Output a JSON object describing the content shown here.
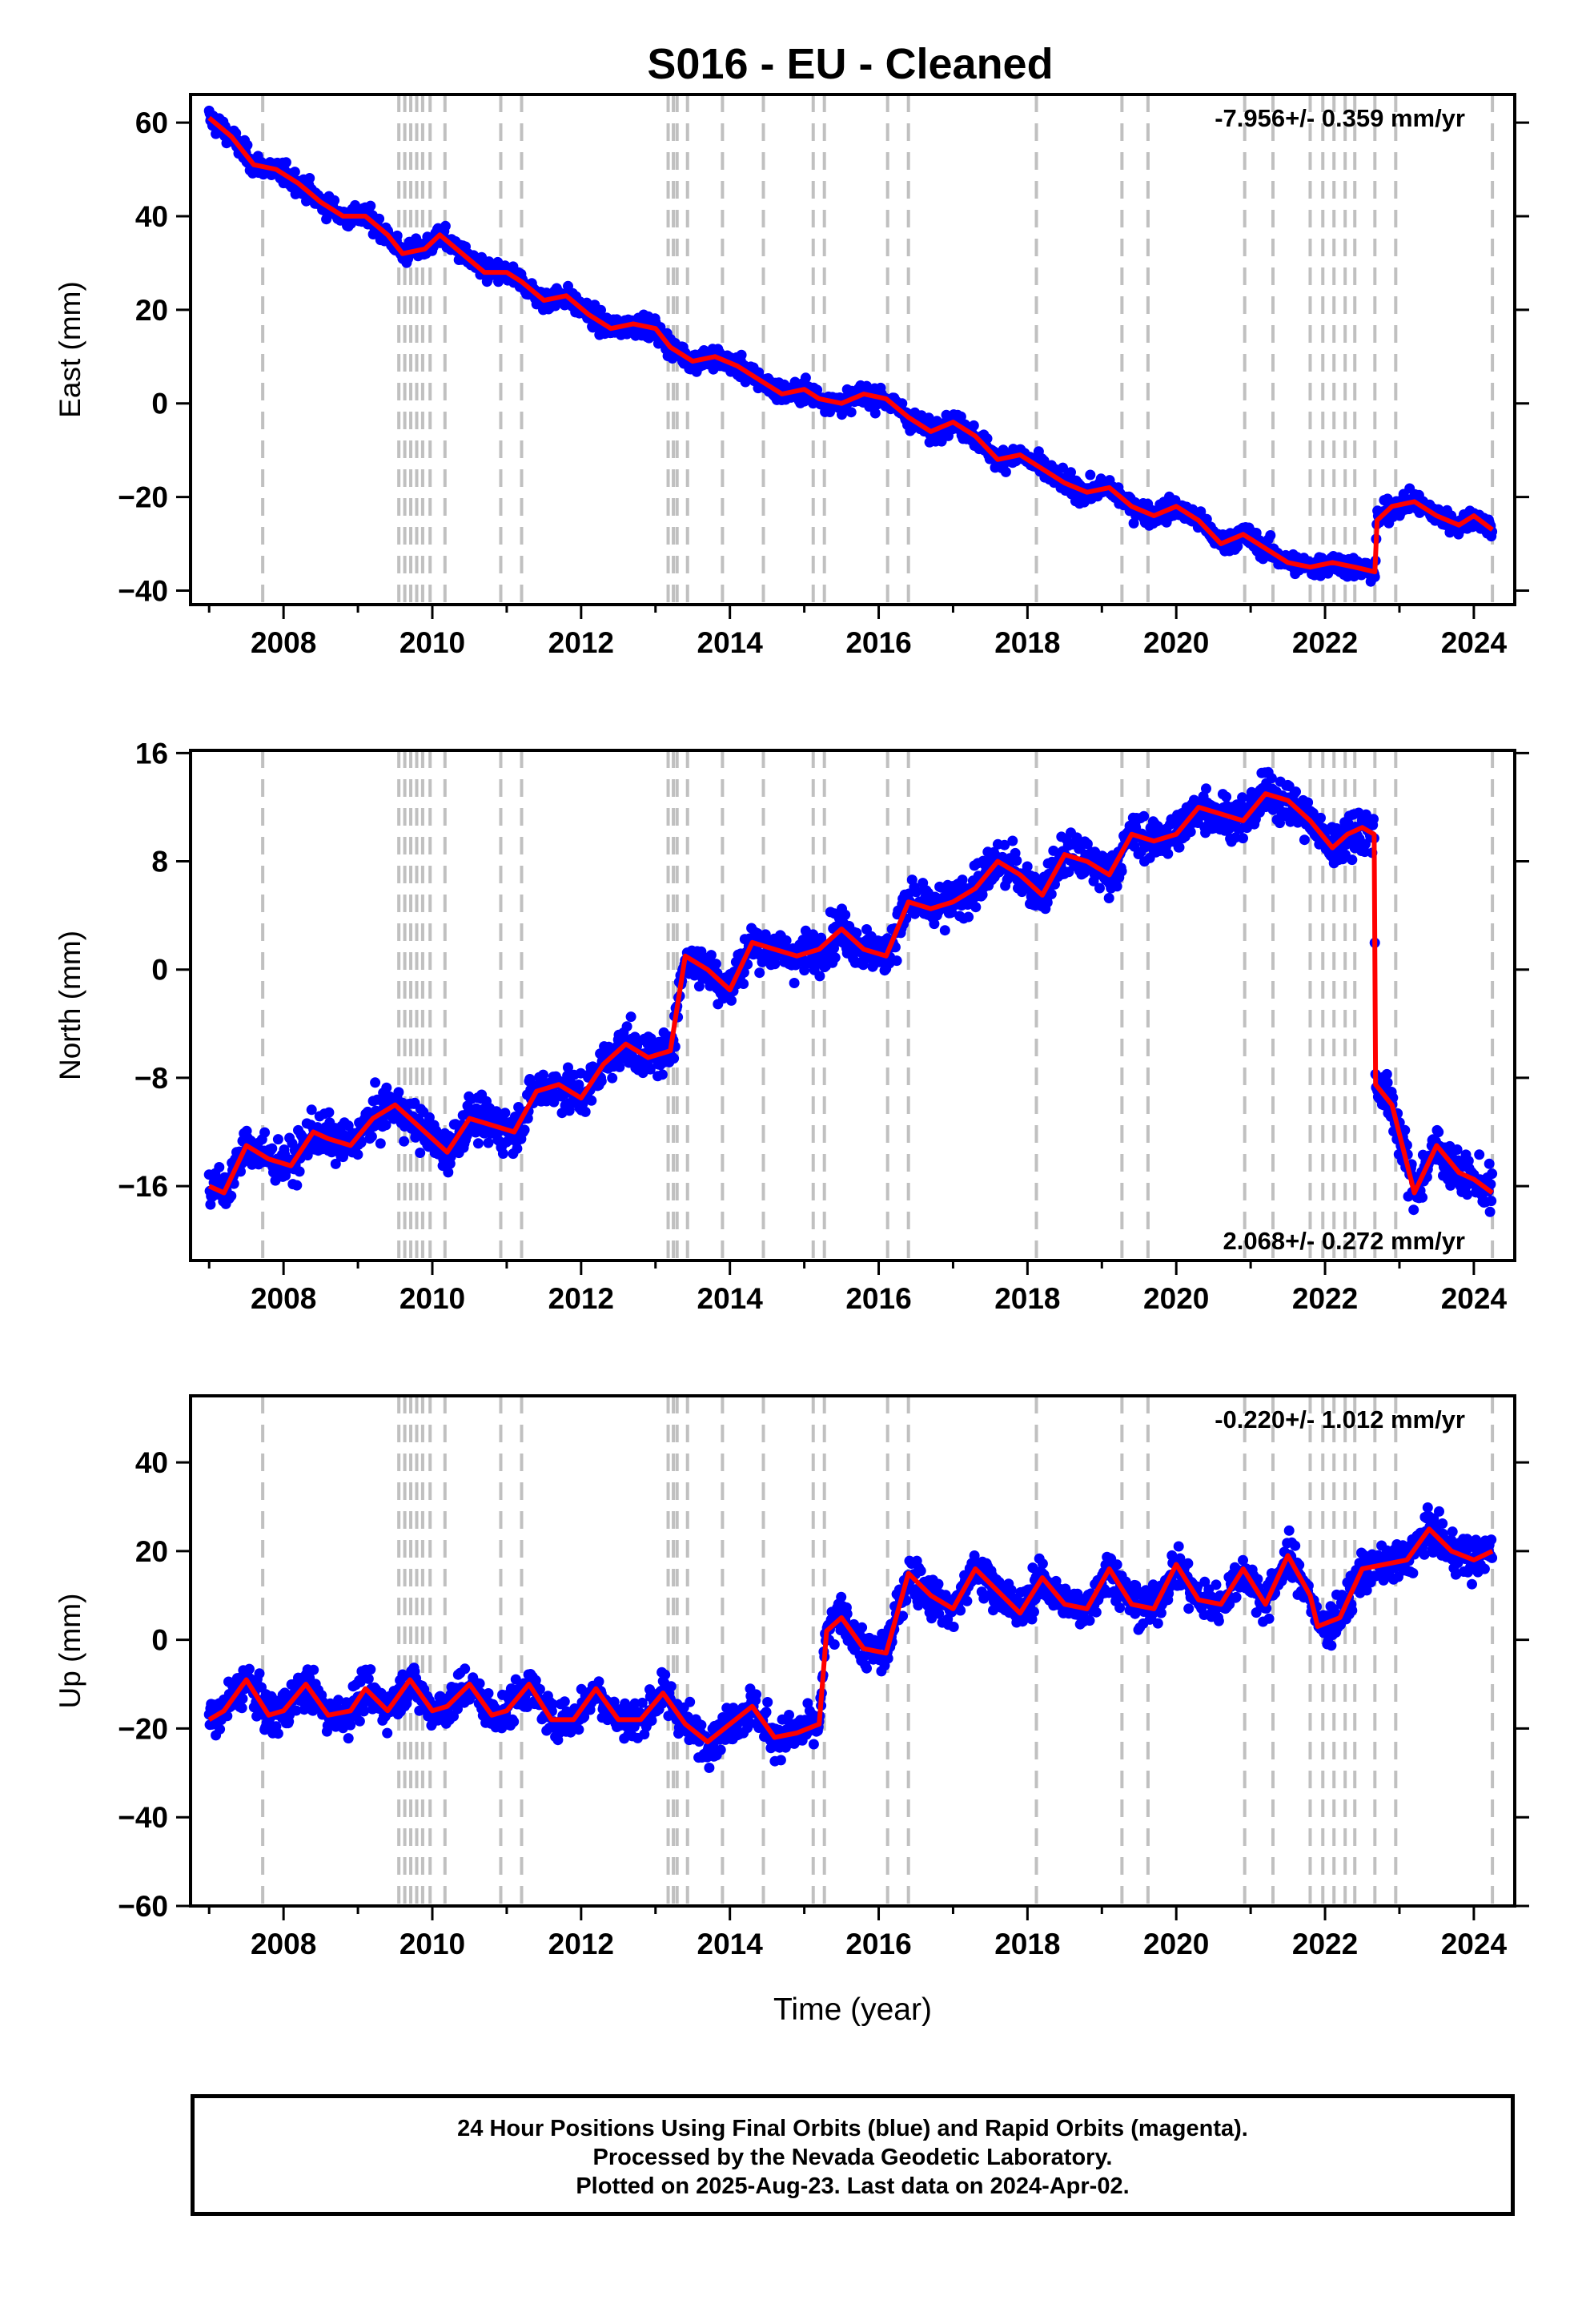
{
  "chart_data": [
    {
      "type": "scatter",
      "title": "S016  - EU - Cleaned",
      "ylabel": "East (mm)",
      "rate_label": "-7.956+/- 0.359 mm/yr",
      "rate_position": "top-right",
      "xlim": [
        2006.75,
        2024.55
      ],
      "ylim": [
        -43,
        66
      ],
      "xticks": [
        "2008",
        "2010",
        "2012",
        "2014",
        "2016",
        "2018",
        "2020",
        "2022",
        "2024"
      ],
      "yticks": [
        "60",
        "40",
        "20",
        "0",
        "−20",
        "−40"
      ],
      "ytick_values": [
        60,
        40,
        20,
        0,
        -20,
        -40
      ],
      "colors": {
        "points": "#0000ff",
        "model": "#ff0000",
        "events": "#c0c0c0"
      },
      "model": {
        "type": "line",
        "x": [
          2007.0,
          2007.3,
          2007.6,
          2007.9,
          2008.2,
          2008.5,
          2008.8,
          2009.1,
          2009.4,
          2009.6,
          2009.9,
          2010.1,
          2010.4,
          2010.7,
          2011.0,
          2011.2,
          2011.5,
          2011.8,
          2012.1,
          2012.4,
          2012.7,
          2013.0,
          2013.2,
          2013.5,
          2013.8,
          2014.1,
          2014.4,
          2014.7,
          2015.0,
          2015.2,
          2015.5,
          2015.8,
          2016.1,
          2016.4,
          2016.7,
          2017.0,
          2017.3,
          2017.6,
          2017.9,
          2018.2,
          2018.5,
          2018.8,
          2019.1,
          2019.4,
          2019.7,
          2020.0,
          2020.3,
          2020.6,
          2020.9,
          2021.2,
          2021.5,
          2021.8,
          2022.1,
          2022.4,
          2022.67,
          2022.7,
          2022.9,
          2023.2,
          2023.5,
          2023.8,
          2024.0,
          2024.25
        ],
        "y": [
          61,
          57,
          51,
          50,
          47,
          43,
          40,
          40,
          36,
          32,
          33,
          36,
          32,
          28,
          28,
          26,
          22,
          23,
          19,
          16,
          17,
          16,
          12,
          9,
          10,
          8,
          5,
          2,
          3,
          1,
          0,
          2,
          1,
          -3,
          -6,
          -4,
          -7,
          -12,
          -11,
          -14,
          -17,
          -19,
          -18,
          -22,
          -24,
          -22,
          -25,
          -30,
          -28,
          -31,
          -34,
          -35,
          -34,
          -35,
          -36,
          -25,
          -22,
          -21,
          -24,
          -26,
          -24,
          -27
        ]
      },
      "events": [
        2007.72,
        2009.55,
        2009.63,
        2009.71,
        2009.79,
        2009.87,
        2009.97,
        2010.17,
        2010.92,
        2011.2,
        2013.17,
        2013.24,
        2013.29,
        2013.43,
        2013.9,
        2014.45,
        2015.12,
        2015.27,
        2016.12,
        2016.4,
        2018.12,
        2019.27,
        2019.62,
        2020.92,
        2021.3,
        2021.8,
        2021.97,
        2022.12,
        2022.27,
        2022.4,
        2022.67,
        2022.95,
        2024.25
      ]
    },
    {
      "type": "scatter",
      "ylabel": "North (mm)",
      "rate_label": "2.068+/- 0.272 mm/yr",
      "rate_position": "bottom-right",
      "xlim": [
        2006.75,
        2024.55
      ],
      "ylim": [
        -21.5,
        16.2
      ],
      "xticks": [
        "2008",
        "2010",
        "2012",
        "2014",
        "2016",
        "2018",
        "2020",
        "2022",
        "2024"
      ],
      "yticks": [
        "16",
        "8",
        "0",
        "−8",
        "−16"
      ],
      "ytick_values": [
        16,
        8,
        0,
        -8,
        -16
      ],
      "colors": {
        "points": "#0000ff",
        "model": "#ff0000",
        "events": "#c0c0c0"
      },
      "model": {
        "type": "line",
        "x": [
          2007.0,
          2007.2,
          2007.5,
          2007.8,
          2008.1,
          2008.4,
          2008.6,
          2008.9,
          2009.2,
          2009.5,
          2009.7,
          2010.0,
          2010.2,
          2010.5,
          2010.8,
          2011.1,
          2011.4,
          2011.7,
          2012.0,
          2012.3,
          2012.6,
          2012.9,
          2013.2,
          2013.4,
          2013.7,
          2014.0,
          2014.3,
          2014.6,
          2014.9,
          2015.2,
          2015.5,
          2015.8,
          2016.1,
          2016.4,
          2016.7,
          2017.0,
          2017.3,
          2017.6,
          2017.9,
          2018.2,
          2018.5,
          2018.8,
          2019.1,
          2019.4,
          2019.7,
          2020.0,
          2020.3,
          2020.6,
          2020.9,
          2021.2,
          2021.5,
          2021.8,
          2022.1,
          2022.3,
          2022.5,
          2022.66,
          2022.68,
          2022.9,
          2023.2,
          2023.5,
          2023.8,
          2024.0,
          2024.25
        ],
        "y": [
          -16,
          -16.5,
          -13,
          -14,
          -14.5,
          -12,
          -12.5,
          -13,
          -11,
          -10,
          -11,
          -12.5,
          -13.5,
          -11,
          -11.5,
          -12,
          -9,
          -8.5,
          -9.5,
          -7,
          -5.5,
          -6.5,
          -6,
          1,
          0,
          -1.5,
          2,
          1.5,
          1,
          1.5,
          3,
          1.5,
          1,
          5,
          4.5,
          5,
          6,
          8,
          7,
          5.5,
          8.5,
          8,
          7,
          10,
          9.5,
          10,
          12,
          11.5,
          11,
          13,
          12.5,
          11,
          9,
          10,
          10.5,
          10,
          -8.5,
          -10,
          -16.5,
          -13,
          -15,
          -15.5,
          -16.5
        ]
      },
      "events": [
        2007.72,
        2009.55,
        2009.63,
        2009.71,
        2009.79,
        2009.87,
        2009.97,
        2010.17,
        2010.92,
        2011.2,
        2013.17,
        2013.24,
        2013.29,
        2013.43,
        2013.9,
        2014.45,
        2015.12,
        2015.27,
        2016.12,
        2016.4,
        2018.12,
        2019.27,
        2019.62,
        2020.92,
        2021.3,
        2021.8,
        2021.97,
        2022.12,
        2022.27,
        2022.4,
        2022.67,
        2022.95,
        2024.25
      ]
    },
    {
      "type": "scatter",
      "ylabel": "Up (mm)",
      "xlabel": "Time (year)",
      "rate_label": "-0.220+/- 1.012 mm/yr",
      "rate_position": "top-right",
      "xlim": [
        2006.75,
        2024.55
      ],
      "ylim": [
        -60,
        55
      ],
      "xticks": [
        "2008",
        "2010",
        "2012",
        "2014",
        "2016",
        "2018",
        "2020",
        "2022",
        "2024"
      ],
      "yticks": [
        "40",
        "20",
        "0",
        "−20",
        "−40",
        "−60"
      ],
      "ytick_values": [
        40,
        20,
        0,
        -20,
        -40,
        -60
      ],
      "colors": {
        "points": "#0000ff",
        "model": "#ff0000",
        "events": "#c0c0c0"
      },
      "model": {
        "type": "line",
        "x": [
          2007.0,
          2007.2,
          2007.5,
          2007.8,
          2008.0,
          2008.3,
          2008.6,
          2008.9,
          2009.1,
          2009.4,
          2009.7,
          2010.0,
          2010.2,
          2010.5,
          2010.8,
          2011.0,
          2011.3,
          2011.6,
          2011.9,
          2012.2,
          2012.5,
          2012.8,
          2013.1,
          2013.4,
          2013.7,
          2014.0,
          2014.3,
          2014.6,
          2014.9,
          2015.2,
          2015.3,
          2015.5,
          2015.8,
          2016.1,
          2016.4,
          2016.7,
          2017.0,
          2017.3,
          2017.6,
          2017.9,
          2018.2,
          2018.5,
          2018.8,
          2019.1,
          2019.4,
          2019.7,
          2020.0,
          2020.3,
          2020.6,
          2020.9,
          2021.2,
          2021.5,
          2021.8,
          2021.9,
          2022.2,
          2022.5,
          2022.8,
          2023.1,
          2023.4,
          2023.7,
          2024.0,
          2024.25
        ],
        "y": [
          -18,
          -16,
          -9,
          -17,
          -16,
          -10,
          -17,
          -16,
          -11,
          -16,
          -9,
          -16,
          -15,
          -10,
          -17,
          -16,
          -10,
          -18,
          -18,
          -11,
          -18,
          -18,
          -12,
          -19,
          -23,
          -19,
          -15,
          -22,
          -21,
          -19,
          2,
          5,
          -2,
          -3,
          15,
          10,
          7,
          16,
          11,
          6,
          14,
          8,
          7,
          16,
          8,
          7,
          17,
          9,
          8,
          16,
          8,
          19,
          10,
          3,
          5,
          16,
          17,
          18,
          25,
          20,
          18,
          20
        ]
      },
      "events": [
        2007.72,
        2009.55,
        2009.63,
        2009.71,
        2009.79,
        2009.87,
        2009.97,
        2010.17,
        2010.92,
        2011.2,
        2013.17,
        2013.24,
        2013.29,
        2013.43,
        2013.9,
        2014.45,
        2015.12,
        2015.27,
        2016.12,
        2016.4,
        2018.12,
        2019.27,
        2019.62,
        2020.92,
        2021.3,
        2021.8,
        2021.97,
        2022.12,
        2022.27,
        2022.4,
        2022.67,
        2022.95,
        2024.25
      ]
    }
  ],
  "footer": {
    "line1": "24 Hour Positions Using Final Orbits (blue) and Rapid Orbits (magenta).",
    "line2": "Processed by the Nevada Geodetic Laboratory.",
    "line3": "Plotted on 2025-Aug-23. Last data on 2024-Apr-02."
  }
}
